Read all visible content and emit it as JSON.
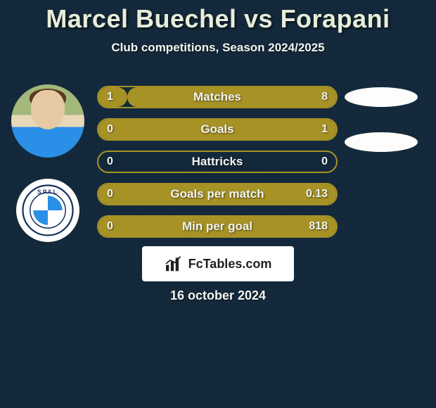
{
  "colors": {
    "background_main": "#13293b",
    "bar_border": "#a69225",
    "bar_fill": "#a69225",
    "bar_track": "#13293b",
    "text": "#f2f4f1",
    "title": "#e8edd9",
    "watermark_bg": "#ffffff",
    "watermark_text": "#1f1f1f",
    "pill": "#fdfdfb"
  },
  "typography": {
    "title_fontsize": 36,
    "subtitle_fontsize": 17,
    "bar_label_fontsize": 17,
    "bar_value_fontsize": 16,
    "date_fontsize": 18
  },
  "title": "Marcel Buechel vs Forapani",
  "subtitle": "Club competitions, Season 2024/2025",
  "date": "16 october 2024",
  "watermark": {
    "label": "FcTables.com"
  },
  "avatars": {
    "player": {
      "name": "player-avatar"
    },
    "club": {
      "name": "club-crest",
      "text": "S.P.A.L."
    }
  },
  "bars": [
    {
      "label": "Matches",
      "left": "1",
      "right": "8",
      "fill_left_pct": 12,
      "fill_right_pct": 88
    },
    {
      "label": "Goals",
      "left": "0",
      "right": "1",
      "fill_left_pct": 0,
      "fill_right_pct": 100
    },
    {
      "label": "Hattricks",
      "left": "0",
      "right": "0",
      "fill_left_pct": 0,
      "fill_right_pct": 0
    },
    {
      "label": "Goals per match",
      "left": "0",
      "right": "0.13",
      "fill_left_pct": 0,
      "fill_right_pct": 100
    },
    {
      "label": "Min per goal",
      "left": "0",
      "right": "818",
      "fill_left_pct": 0,
      "fill_right_pct": 100
    }
  ],
  "side_pills_count": 2
}
